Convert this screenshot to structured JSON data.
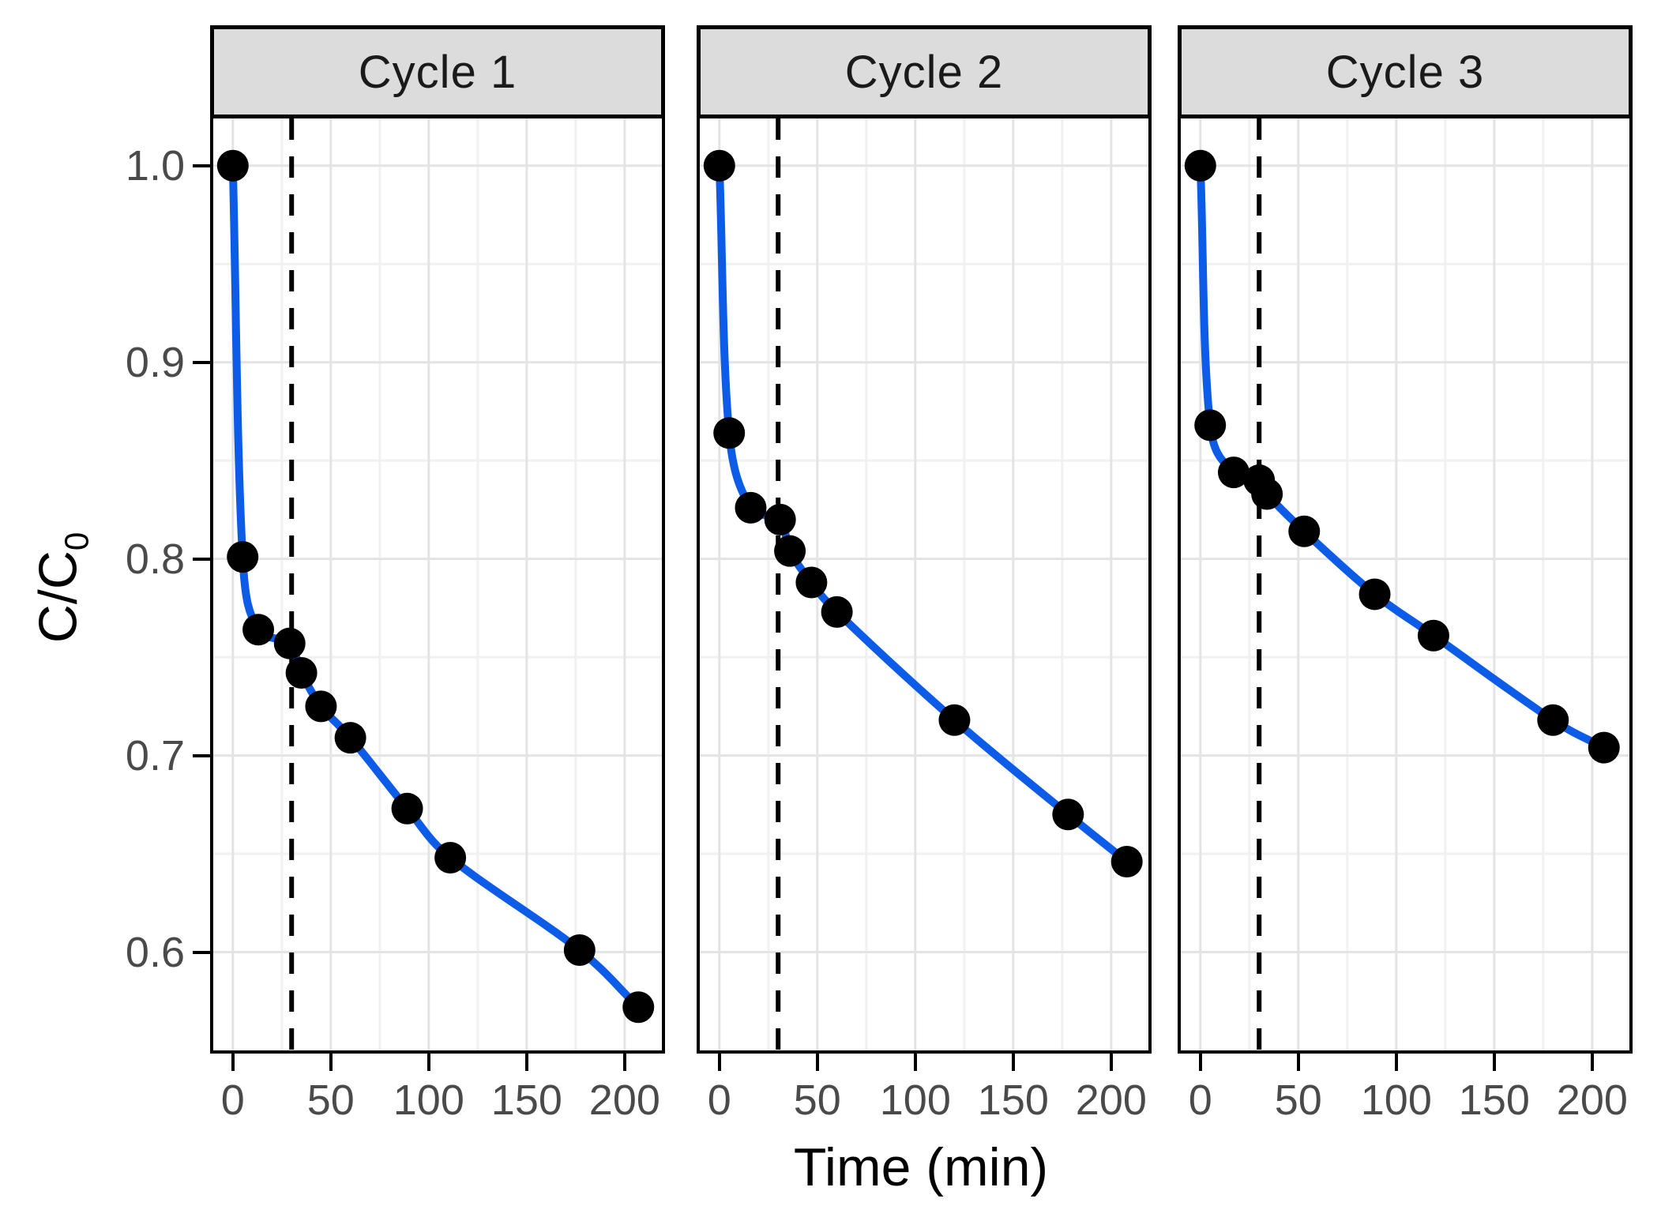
{
  "figure": {
    "x_axis_label": "Time (min)",
    "y_axis_label_main": "C/C",
    "y_axis_label_sub": "0"
  },
  "chart_data": {
    "type": "line",
    "title": "",
    "xlabel": "Time (min)",
    "ylabel": "C/C0",
    "grid": true,
    "legend_position": "none",
    "xlim": [
      -10,
      219
    ],
    "ylim": [
      0.55,
      1.024
    ],
    "x_major_ticks": [
      0,
      50,
      100,
      150,
      200
    ],
    "x_tick_labels": [
      "0",
      "50",
      "100",
      "150",
      "200"
    ],
    "x_minor_ticks": [
      25,
      75,
      125,
      175
    ],
    "y_major_ticks": [
      1.0,
      0.9,
      0.8,
      0.7,
      0.6
    ],
    "y_tick_labels": [
      "1.0",
      "0.9",
      "0.8",
      "0.7",
      "0.6"
    ],
    "y_minor_ticks": [
      0.95,
      0.85,
      0.75,
      0.65
    ],
    "dashed_vline_x": 30,
    "facets": [
      {
        "label": "Cycle 1",
        "series": {
          "x": [
            0,
            5,
            13,
            29,
            35,
            45,
            60,
            89,
            111,
            177,
            207
          ],
          "y": [
            1.0,
            0.801,
            0.764,
            0.757,
            0.742,
            0.725,
            0.709,
            0.673,
            0.648,
            0.601,
            0.572
          ]
        }
      },
      {
        "label": "Cycle 2",
        "series": {
          "x": [
            0,
            5,
            16,
            31,
            36,
            47,
            60,
            120,
            178,
            208
          ],
          "y": [
            1.0,
            0.864,
            0.826,
            0.82,
            0.804,
            0.788,
            0.773,
            0.718,
            0.67,
            0.646
          ]
        }
      },
      {
        "label": "Cycle 3",
        "series": {
          "x": [
            0,
            5,
            17,
            30,
            34,
            53,
            89,
            119,
            180,
            206
          ],
          "y": [
            1.0,
            0.868,
            0.844,
            0.84,
            0.833,
            0.814,
            0.782,
            0.761,
            0.718,
            0.704
          ]
        }
      }
    ],
    "colors": {
      "line": "#0d5ce8",
      "point": "#000000",
      "strip_fill": "#dcdcdc",
      "panel_border": "#000000",
      "tick_label": "#4a4a4a",
      "grid_major": "#e4e4e4",
      "grid_minor": "#f1f1f1",
      "dashed_line": "#000000",
      "background": "#ffffff"
    }
  },
  "layout_lefts": [
    266,
    882,
    1491
  ],
  "facet_width": 576
}
